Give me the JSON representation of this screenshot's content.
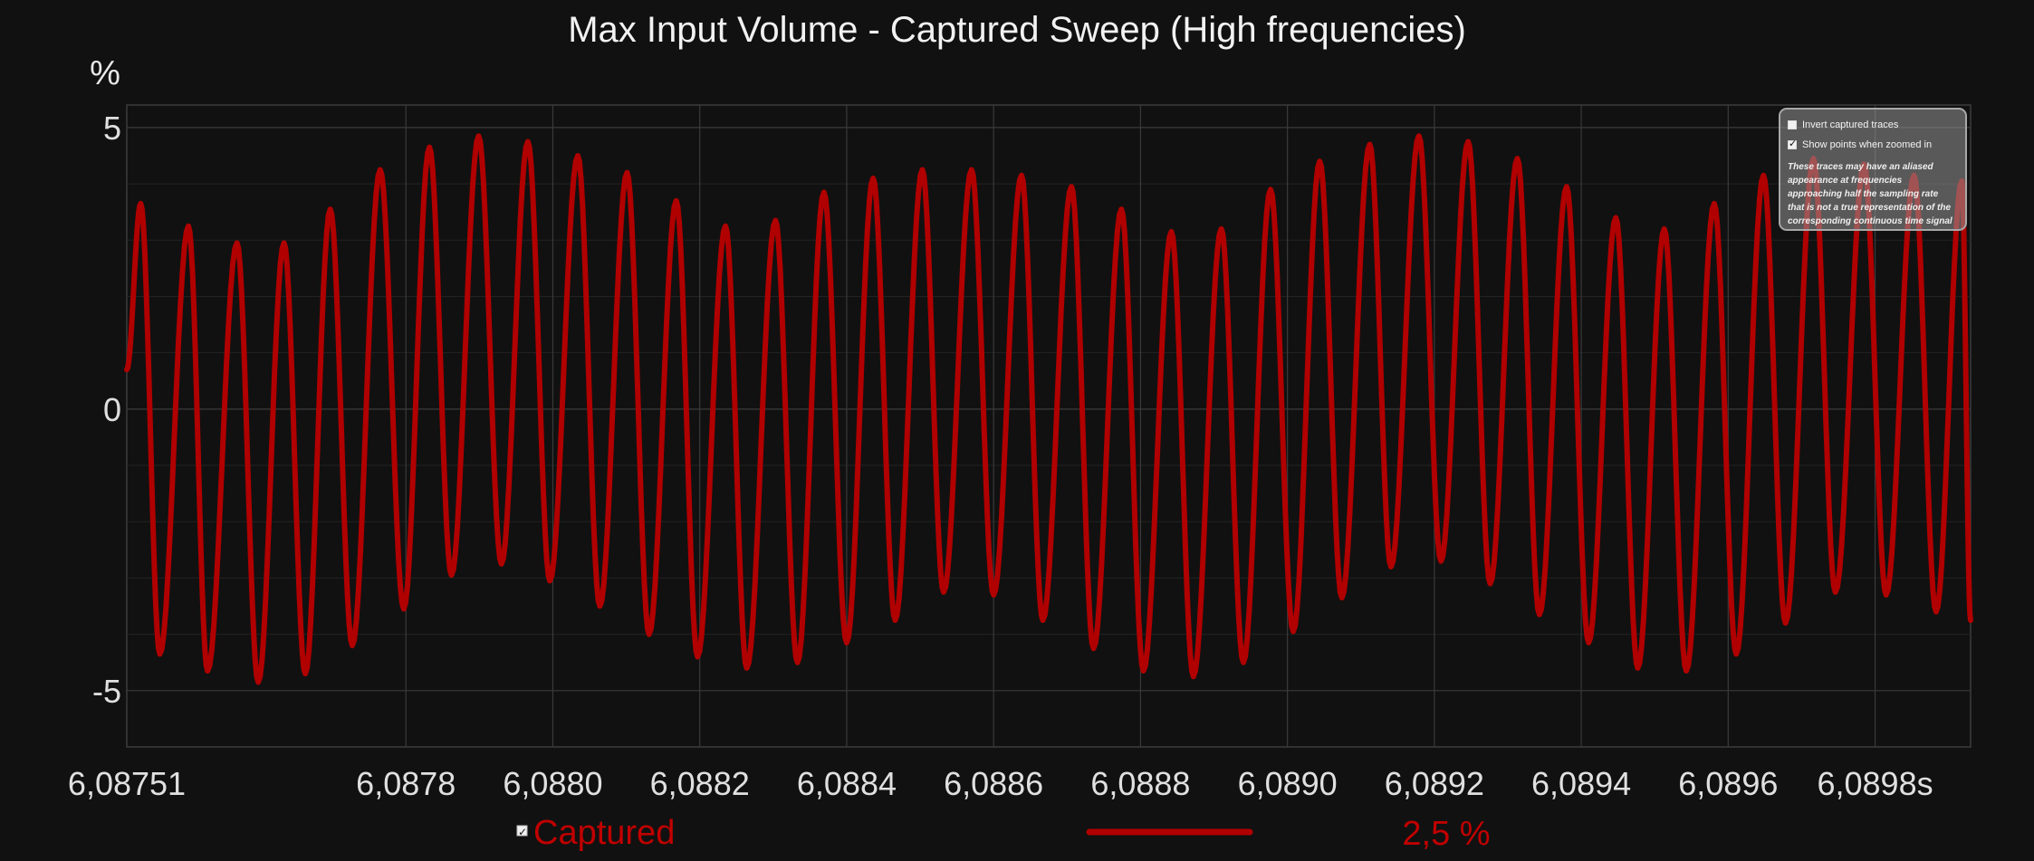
{
  "chart_data": {
    "type": "line",
    "title": "Max Input Volume - Captured Sweep (High frequencies)",
    "ylabel": "%",
    "ylim": [
      -6.0,
      5.4
    ],
    "xlim": [
      6.08742,
      6.08993
    ],
    "y_ticks": [
      {
        "value": 5,
        "label": "5"
      },
      {
        "value": 0,
        "label": "0"
      },
      {
        "value": -5,
        "label": "-5"
      }
    ],
    "x_ticks": [
      {
        "value": 6.08751,
        "label": "6,08751"
      },
      {
        "value": 6.0878,
        "label": "6,0878"
      },
      {
        "value": 6.088,
        "label": "6,0880"
      },
      {
        "value": 6.0882,
        "label": "6,0882"
      },
      {
        "value": 6.0884,
        "label": "6,0884"
      },
      {
        "value": 6.0886,
        "label": "6,0886"
      },
      {
        "value": 6.0888,
        "label": "6,0888"
      },
      {
        "value": 6.089,
        "label": "6,0890"
      },
      {
        "value": 6.0892,
        "label": "6,0892"
      },
      {
        "value": 6.0894,
        "label": "6,0894"
      },
      {
        "value": 6.0896,
        "label": "6,0896"
      },
      {
        "value": 6.0898,
        "label": "6,0898s"
      }
    ],
    "grid": true,
    "series": [
      {
        "name": "Captured",
        "color": "#b00000",
        "peaks": [
          [
            6.08742,
            0.7
          ],
          [
            6.087439,
            3.65
          ],
          [
            6.087465,
            -4.35
          ],
          [
            6.087504,
            3.25
          ],
          [
            6.08753,
            -4.65
          ],
          [
            6.08757,
            2.95
          ],
          [
            6.087599,
            -4.85
          ],
          [
            6.087634,
            2.95
          ],
          [
            6.087663,
            -4.7
          ],
          [
            6.087697,
            3.55
          ],
          [
            6.087727,
            -4.2
          ],
          [
            6.087765,
            4.25
          ],
          [
            6.087797,
            -3.55
          ],
          [
            6.087832,
            4.65
          ],
          [
            6.087862,
            -2.95
          ],
          [
            6.087899,
            4.85
          ],
          [
            6.08793,
            -2.75
          ],
          [
            6.087966,
            4.75
          ],
          [
            6.087996,
            -3.05
          ],
          [
            6.088034,
            4.5
          ],
          [
            6.088064,
            -3.5
          ],
          [
            6.088101,
            4.2
          ],
          [
            6.088131,
            -4.0
          ],
          [
            6.088168,
            3.7
          ],
          [
            6.088197,
            -4.4
          ],
          [
            6.088235,
            3.25
          ],
          [
            6.088264,
            -4.6
          ],
          [
            6.088303,
            3.35
          ],
          [
            6.088333,
            -4.5
          ],
          [
            6.088369,
            3.85
          ],
          [
            6.0884,
            -4.15
          ],
          [
            6.088436,
            4.1
          ],
          [
            6.088466,
            -3.75
          ],
          [
            6.088503,
            4.25
          ],
          [
            6.088532,
            -3.25
          ],
          [
            6.08857,
            4.25
          ],
          [
            6.0886,
            -3.3
          ],
          [
            6.088638,
            4.15
          ],
          [
            6.088667,
            -3.75
          ],
          [
            6.088706,
            3.95
          ],
          [
            6.088736,
            -4.25
          ],
          [
            6.088774,
            3.55
          ],
          [
            6.088804,
            -4.65
          ],
          [
            6.088842,
            3.15
          ],
          [
            6.088872,
            -4.75
          ],
          [
            6.08891,
            3.2
          ],
          [
            6.08894,
            -4.5
          ],
          [
            6.088977,
            3.9
          ],
          [
            6.089008,
            -3.95
          ],
          [
            6.089044,
            4.4
          ],
          [
            6.089074,
            -3.35
          ],
          [
            6.089112,
            4.7
          ],
          [
            6.089141,
            -2.8
          ],
          [
            6.089179,
            4.85
          ],
          [
            6.089209,
            -2.7
          ],
          [
            6.089246,
            4.75
          ],
          [
            6.089276,
            -3.1
          ],
          [
            6.089313,
            4.45
          ],
          [
            6.089343,
            -3.65
          ],
          [
            6.08938,
            3.95
          ],
          [
            6.08941,
            -4.15
          ],
          [
            6.089447,
            3.4
          ],
          [
            6.089477,
            -4.6
          ],
          [
            6.089513,
            3.2
          ],
          [
            6.089543,
            -4.65
          ],
          [
            6.089581,
            3.65
          ],
          [
            6.089611,
            -4.35
          ],
          [
            6.089648,
            4.15
          ],
          [
            6.089678,
            -3.8
          ],
          [
            6.089716,
            4.45
          ],
          [
            6.089746,
            -3.25
          ],
          [
            6.089785,
            4.35
          ],
          [
            6.089815,
            -3.3
          ],
          [
            6.089853,
            4.15
          ],
          [
            6.089883,
            -3.6
          ],
          [
            6.089918,
            4.05
          ],
          [
            6.08993,
            -3.75
          ]
        ]
      }
    ],
    "legend": {
      "placement": "bottom",
      "label": "Captured",
      "checked": true,
      "value_text": "2,5 %"
    }
  },
  "options": {
    "invert_label": "Invert captured traces",
    "invert_checked": false,
    "show_points_label": "Show points when zoomed in",
    "show_points_checked": true,
    "note": "These traces may have an aliased\nappearance at frequencies\napproaching half the sampling rate\nthat is not a true representation of the\ncorresponding continuous time signal"
  },
  "colors": {
    "background": "#111111",
    "grid": "#3a3a3a",
    "trace": "#b00000"
  }
}
